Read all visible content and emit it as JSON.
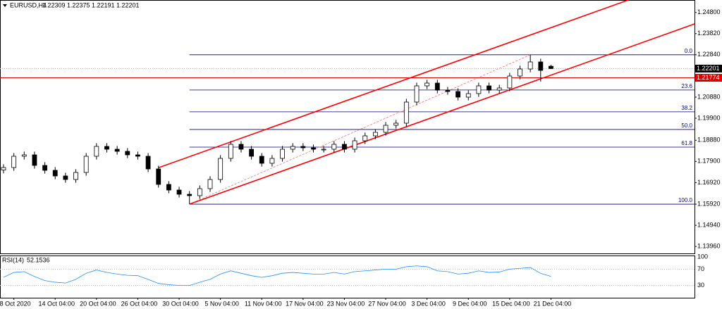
{
  "chart_data": {
    "type": "candlestick",
    "symbol": "EURUSD,H4",
    "categories": [
      null,
      "8 Oct 2020",
      null,
      null,
      null,
      "14 Oct 04:00",
      null,
      null,
      null,
      "20 Oct 04:00",
      null,
      null,
      null,
      "26 Oct 04:00",
      null,
      null,
      null,
      "30 Oct 04:00",
      null,
      null,
      null,
      "5 Nov 04:00",
      null,
      null,
      null,
      "11 Nov 04:00",
      null,
      null,
      null,
      "17 Nov 04:00",
      null,
      null,
      null,
      "23 Nov 04:00",
      null,
      null,
      null,
      "27 Nov 04:00",
      null,
      null,
      null,
      "3 Dec 04:00",
      null,
      null,
      null,
      "9 Dec 04:00",
      null,
      null,
      null,
      "15 Dec 04:00",
      null,
      null,
      null,
      "21 Dec 04:00"
    ],
    "ohlc": [
      [
        1.175,
        1.17767,
        1.1735,
        1.17617
      ],
      [
        1.17617,
        1.18289,
        1.17467,
        1.18139
      ],
      [
        1.18139,
        1.18354,
        1.17989,
        1.18204
      ],
      [
        1.18204,
        1.18354,
        1.17565,
        1.17715
      ],
      [
        1.17715,
        1.17865,
        1.17337,
        1.17487
      ],
      [
        1.17487,
        1.17637,
        1.17076,
        1.17226
      ],
      [
        1.17226,
        1.17376,
        1.16913,
        1.17063
      ],
      [
        1.17063,
        1.17539,
        1.16913,
        1.17389
      ],
      [
        1.17389,
        1.18289,
        1.17239,
        1.18139
      ],
      [
        1.18139,
        1.18746,
        1.17989,
        1.18596
      ],
      [
        1.18596,
        1.18746,
        1.18315,
        1.18465
      ],
      [
        1.18465,
        1.18615,
        1.18217,
        1.18367
      ],
      [
        1.18367,
        1.18517,
        1.18054,
        1.18204
      ],
      [
        1.18204,
        1.18354,
        1.17989,
        1.18139
      ],
      [
        1.18139,
        1.18289,
        1.17402,
        1.17552
      ],
      [
        1.17552,
        1.17702,
        1.16685,
        1.16835
      ],
      [
        1.16835,
        1.16985,
        1.16424,
        1.16574
      ],
      [
        1.16574,
        1.16724,
        1.16228,
        1.16378
      ],
      [
        1.16378,
        1.16528,
        1.1592,
        1.16313
      ],
      [
        1.16313,
        1.16789,
        1.16163,
        1.16639
      ],
      [
        1.16639,
        1.17213,
        1.16489,
        1.17063
      ],
      [
        1.17063,
        1.18191,
        1.16913,
        1.18041
      ],
      [
        1.18041,
        1.18843,
        1.17891,
        1.18693
      ],
      [
        1.18693,
        1.18843,
        1.18315,
        1.18465
      ],
      [
        1.18465,
        1.18615,
        1.17989,
        1.18139
      ],
      [
        1.18139,
        1.18289,
        1.17663,
        1.17813
      ],
      [
        1.17813,
        1.18191,
        1.17663,
        1.18041
      ],
      [
        1.18041,
        1.18615,
        1.17891,
        1.18465
      ],
      [
        1.18465,
        1.18746,
        1.18315,
        1.18596
      ],
      [
        1.18596,
        1.18746,
        1.1838,
        1.1853
      ],
      [
        1.1853,
        1.1868,
        1.18315,
        1.18465
      ],
      [
        1.18465,
        1.18615,
        1.18315,
        1.18465
      ],
      [
        1.18465,
        1.18843,
        1.18315,
        1.18693
      ],
      [
        1.18693,
        1.18843,
        1.18315,
        1.18465
      ],
      [
        1.18465,
        1.19006,
        1.18315,
        1.18856
      ],
      [
        1.18856,
        1.19235,
        1.18706,
        1.19085
      ],
      [
        1.19085,
        1.19398,
        1.18935,
        1.19248
      ],
      [
        1.19248,
        1.19724,
        1.19098,
        1.19574
      ],
      [
        1.19574,
        1.19822,
        1.19424,
        1.19672
      ],
      [
        1.19672,
        1.208,
        1.19522,
        1.2065
      ],
      [
        1.2065,
        1.2155,
        1.205,
        1.214
      ],
      [
        1.214,
        1.2168,
        1.2125,
        1.2153
      ],
      [
        1.2153,
        1.2168,
        1.21054,
        1.21204
      ],
      [
        1.21204,
        1.21354,
        1.20989,
        1.21139
      ],
      [
        1.21139,
        1.21289,
        1.20728,
        1.20878
      ],
      [
        1.20878,
        1.21191,
        1.20728,
        1.21041
      ],
      [
        1.21041,
        1.2155,
        1.20891,
        1.214
      ],
      [
        1.214,
        1.2155,
        1.21054,
        1.21204
      ],
      [
        1.21204,
        1.21452,
        1.21054,
        1.21302
      ],
      [
        1.21302,
        1.22006,
        1.21152,
        1.21856
      ],
      [
        1.21856,
        1.22332,
        1.21706,
        1.22182
      ],
      [
        1.22182,
        1.2284,
        1.22032,
        1.22509
      ],
      [
        1.22509,
        1.22659,
        1.216,
        1.22117
      ],
      [
        1.22309,
        1.22375,
        1.22191,
        1.22201
      ]
    ],
    "ylim": [
      1.13639,
      1.25378
    ],
    "yticks": [
      {
        "value": 1.248,
        "label": "1.24800"
      },
      {
        "value": 1.2382,
        "label": "1.23820"
      },
      {
        "value": 1.2284,
        "label": "1.22840"
      },
      {
        "value": 1.2088,
        "label": "1.20880"
      },
      {
        "value": 1.199,
        "label": "1.19900"
      },
      {
        "value": 1.1888,
        "label": "1.18880"
      },
      {
        "value": 1.179,
        "label": "1.17900"
      },
      {
        "value": 1.1692,
        "label": "1.16920"
      },
      {
        "value": 1.1592,
        "label": "1.15920"
      },
      {
        "value": 1.1494,
        "label": "1.14940"
      },
      {
        "value": 1.1396,
        "label": "1.13960"
      }
    ],
    "hline": {
      "value": 1.21774,
      "color": "#e00000"
    },
    "fibonacci": {
      "start": 18,
      "color": "#000080",
      "levels": [
        {
          "value": 0,
          "label": "0.0"
        },
        23.6,
        38.2,
        {
          "value": 50,
          "label": "50.0"
        },
        61.8,
        {
          "value": 100,
          "label": "100.0"
        }
      ],
      "prices": [
        1.2284,
        1.21207,
        1.20197,
        1.1938,
        1.18563,
        1.1592
      ],
      "diagonal": [
        [
          18,
          1.1592
        ],
        [
          51,
          1.2284
        ]
      ]
    },
    "channel": {
      "color": "#ff0000",
      "lower": [
        [
          18,
          1.1592
        ],
        [
          52,
          1.21726
        ]
      ],
      "upper": [
        [
          15,
          1.17609
        ],
        [
          52,
          1.23927
        ]
      ]
    },
    "rsi": {
      "name": "RSI(14)",
      "color": "#1e90ff",
      "ylim": [
        0,
        100
      ],
      "yticks": [
        100,
        70,
        30
      ],
      "values": [
        50,
        62,
        64,
        52,
        42,
        38,
        36,
        45,
        60,
        68,
        62,
        58,
        55,
        54,
        45,
        35,
        32,
        30,
        30,
        38,
        45,
        58,
        66,
        60,
        54,
        50,
        54,
        60,
        62,
        60,
        58,
        58,
        62,
        58,
        64,
        66,
        68,
        70,
        70,
        76,
        78,
        76,
        66,
        64,
        58,
        60,
        66,
        62,
        63,
        70,
        72,
        74,
        60,
        52.1536
      ]
    }
  }
}
